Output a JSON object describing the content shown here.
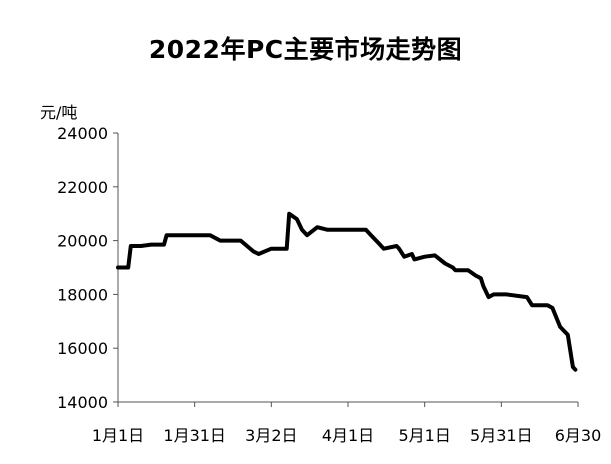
{
  "chart_data": {
    "type": "line",
    "title": "2022年PC主要市场走势图",
    "ylabel": "元/吨",
    "xlabel": "",
    "ylim": [
      14000,
      24000
    ],
    "yticks": [
      14000,
      16000,
      18000,
      20000,
      22000,
      24000
    ],
    "xlim": [
      0,
      180
    ],
    "xticks": [
      {
        "x": 0,
        "label": "1月1日"
      },
      {
        "x": 30,
        "label": "1月31日"
      },
      {
        "x": 60,
        "label": "3月2日"
      },
      {
        "x": 90,
        "label": "4月1日"
      },
      {
        "x": 120,
        "label": "5月1日"
      },
      {
        "x": 150,
        "label": "5月31日"
      },
      {
        "x": 180,
        "label": "6月30"
      }
    ],
    "grid": false,
    "series": [
      {
        "color": "#000000",
        "x": [
          0,
          4,
          5,
          9,
          13,
          18,
          19,
          26,
          36,
          40,
          44,
          48,
          53,
          55,
          60,
          66,
          67,
          70,
          72,
          74,
          78,
          82,
          87,
          97,
          99,
          102,
          104,
          109,
          110,
          112,
          115,
          116,
          120,
          124,
          128,
          131,
          132,
          137,
          140,
          142,
          143,
          145,
          147,
          152,
          160,
          162,
          168,
          170,
          173,
          175,
          176,
          178,
          179
        ],
        "y": [
          19000,
          19000,
          19800,
          19800,
          19850,
          19850,
          20200,
          20200,
          20200,
          20000,
          20000,
          20000,
          19600,
          19500,
          19700,
          19700,
          21000,
          20800,
          20400,
          20200,
          20500,
          20400,
          20400,
          20400,
          20200,
          19900,
          19700,
          19800,
          19700,
          19400,
          19500,
          19300,
          19400,
          19450,
          19150,
          19000,
          18900,
          18900,
          18700,
          18600,
          18300,
          17900,
          18000,
          18000,
          17900,
          17600,
          17600,
          17500,
          16800,
          16600,
          16500,
          15300,
          15200
        ]
      }
    ]
  }
}
